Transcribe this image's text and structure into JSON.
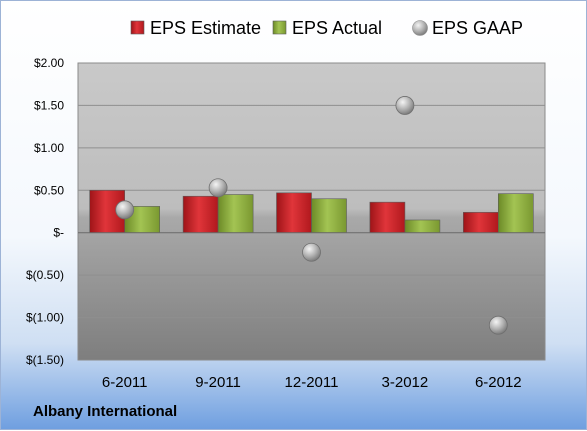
{
  "chart_data": {
    "type": "bar",
    "categories": [
      "6-2011",
      "9-2011",
      "12-2011",
      "3-2012",
      "6-2012"
    ],
    "series": [
      {
        "name": "EPS Estimate",
        "kind": "bar",
        "color": "#cc1f24",
        "values": [
          0.5,
          0.43,
          0.47,
          0.36,
          0.24
        ]
      },
      {
        "name": "EPS Actual",
        "kind": "bar",
        "color": "#8cad3b",
        "values": [
          0.31,
          0.45,
          0.4,
          0.15,
          0.46
        ]
      },
      {
        "name": "EPS GAAP",
        "kind": "marker",
        "color": "#a8a8a8",
        "values": [
          0.27,
          0.53,
          -0.23,
          1.5,
          -1.09
        ]
      }
    ],
    "yticks": [
      {
        "value": 2.0,
        "label": "$2.00"
      },
      {
        "value": 1.5,
        "label": "$1.50"
      },
      {
        "value": 1.0,
        "label": "$1.00"
      },
      {
        "value": 0.5,
        "label": "$0.50"
      },
      {
        "value": 0.0,
        "label": "$-"
      },
      {
        "value": -0.5,
        "label": "$(0.50)"
      },
      {
        "value": -1.0,
        "label": "$(1.00)"
      },
      {
        "value": -1.5,
        "label": "$(1.50)"
      }
    ],
    "ylim": [
      -1.5,
      2.0
    ],
    "grid": true,
    "legend_position": "top",
    "title": "Albany International",
    "xlabel": "",
    "ylabel": ""
  }
}
